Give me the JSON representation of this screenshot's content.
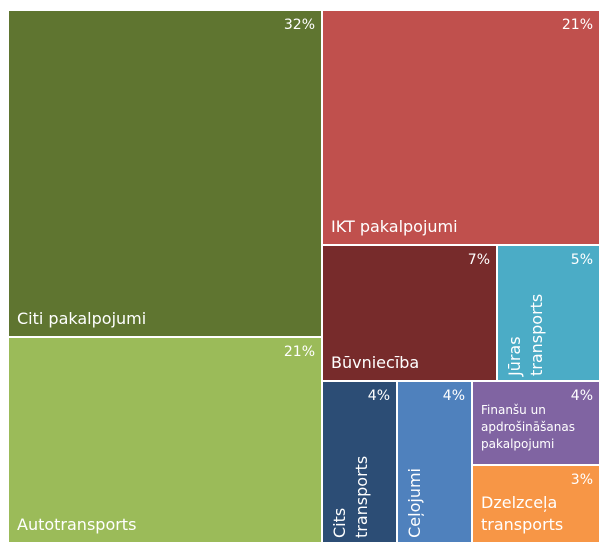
{
  "chart_data": {
    "type": "treemap",
    "categories": [
      "Citi pakalpojumi",
      "Autotransports",
      "IKT pakalpojumi",
      "Būvniecība",
      "Jūras transports",
      "Cits transports",
      "Ceļojumi",
      "Finanšu un apdrošināšanas pakalpojumi",
      "Dzelzceļa transports"
    ],
    "values": [
      32,
      21,
      21,
      7,
      5,
      4,
      4,
      4,
      3
    ],
    "value_labels": [
      "32%",
      "21%",
      "21%",
      "7%",
      "5%",
      "4%",
      "4%",
      "4%",
      "3%"
    ],
    "colors": [
      "#5f7530",
      "#9bbb59",
      "#c0504d",
      "#772b2b",
      "#4bacc6",
      "#2c4d75",
      "#4f81bd",
      "#8064a2",
      "#f79646"
    ]
  }
}
